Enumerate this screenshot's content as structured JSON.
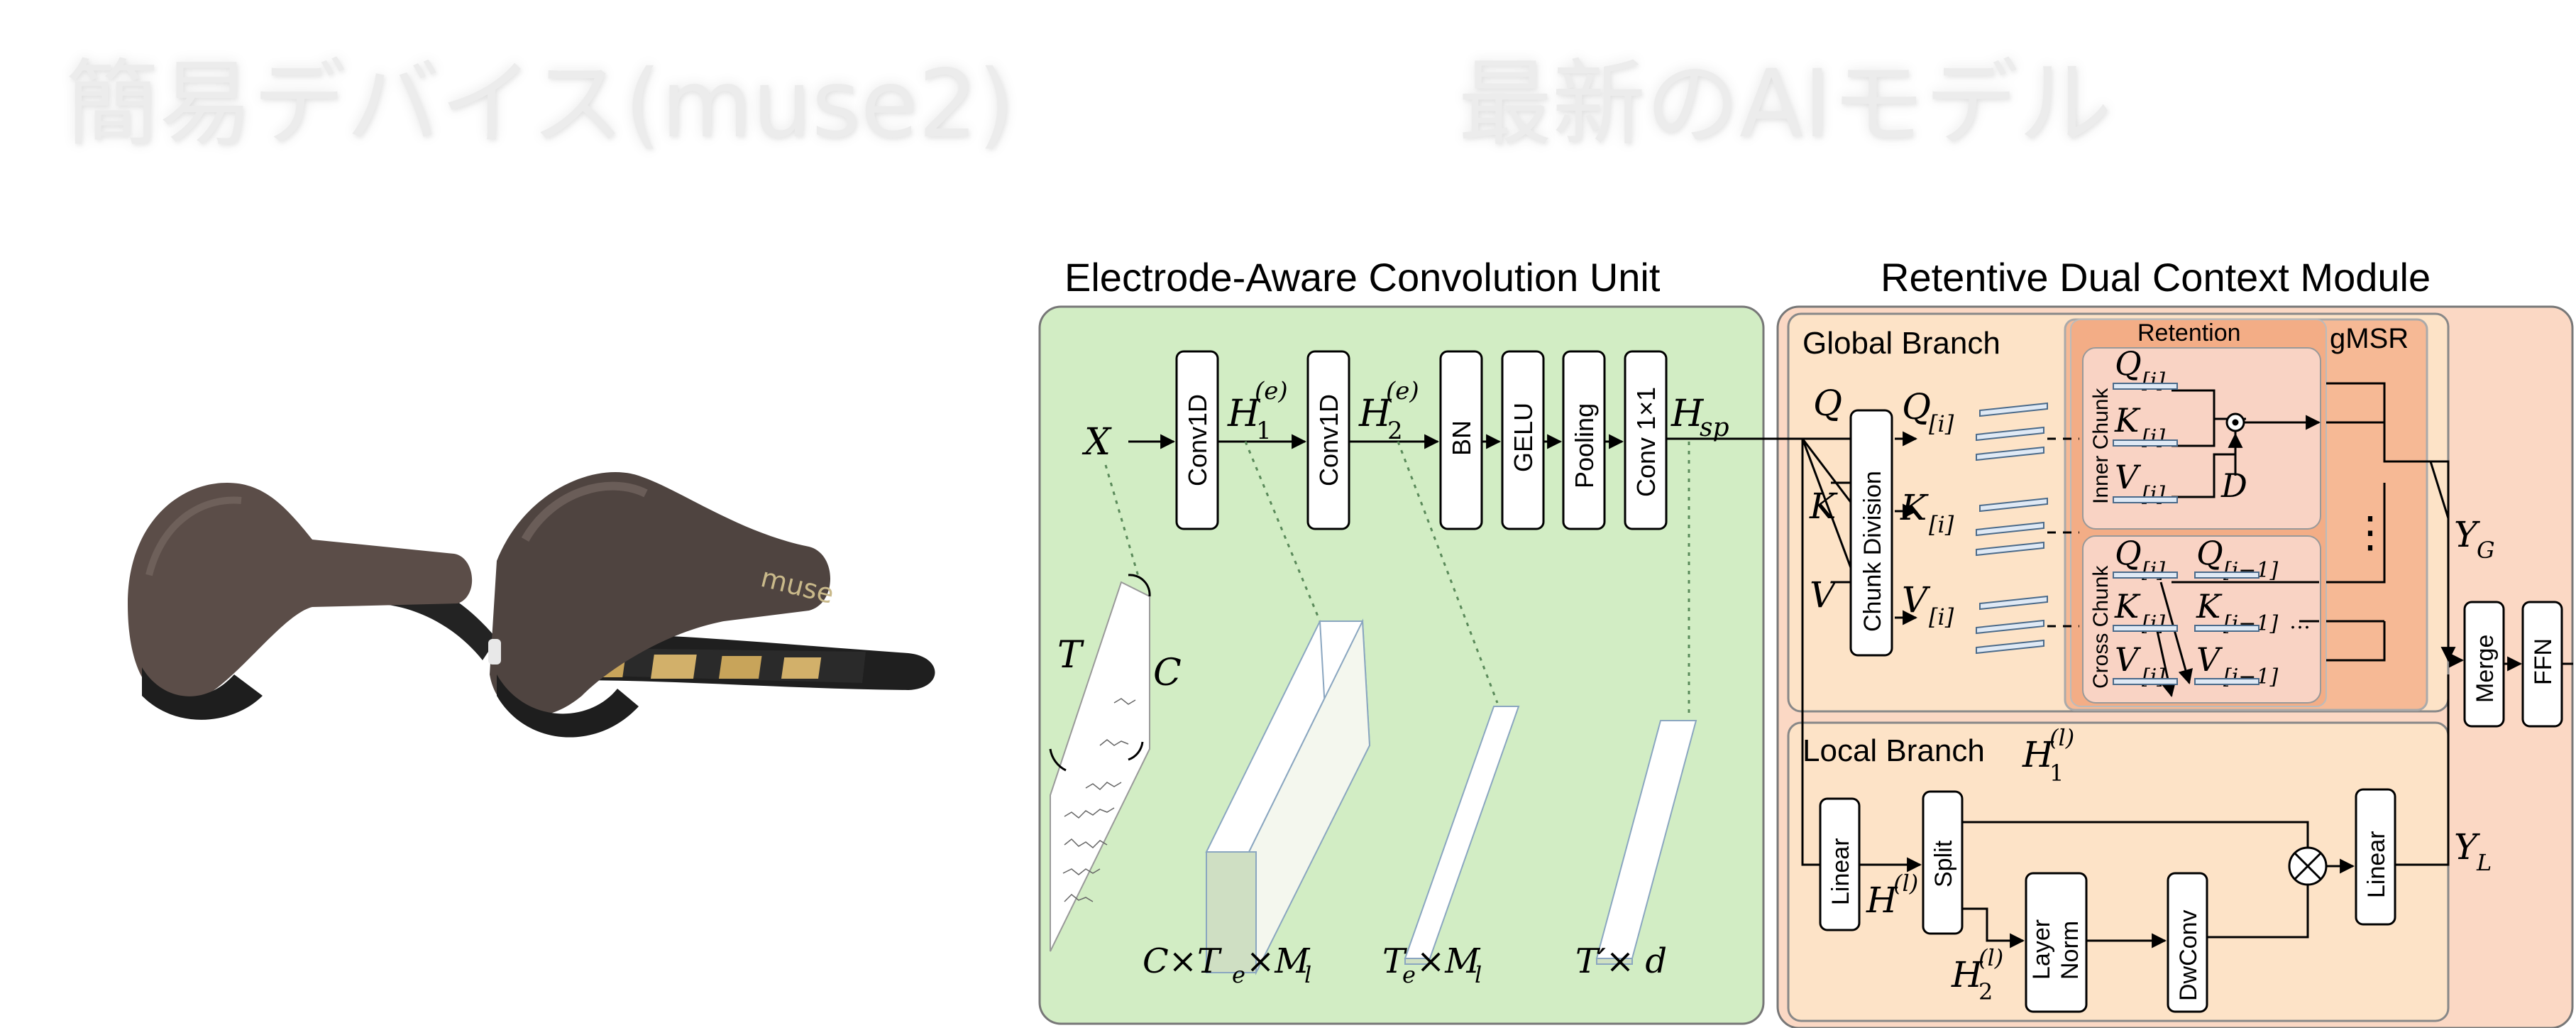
{
  "headings": {
    "left": "簡易デバイス(muse2)",
    "right": "最新のAIモデル"
  },
  "headset": {
    "brand_text": "muse",
    "shell_color": "#5b4d48",
    "band_color": "#222222",
    "sensor_color": "#c8a45a"
  },
  "diagram": {
    "colors": {
      "green": "#d2edc4",
      "orange": "#fde3c7",
      "salmon": "#fbd8c4",
      "retention": "#f6b995",
      "chunk": "#f9d3c4"
    },
    "sections": {
      "eacu_title": "Electrode-Aware Convolution Unit",
      "rdcm_title": "Retentive Dual Context Module",
      "global_branch": "Global Branch",
      "local_branch": "Local Branch",
      "retention": "Retention",
      "gmsr": "gMSR",
      "inner_chunk": "Inner Chunk",
      "cross_chunk": "Cross Chunk"
    },
    "blocks": {
      "conv1d_a": "Conv1D",
      "conv1d_b": "Conv1D",
      "bn": "BN",
      "gelu": "GELU",
      "pooling": "Pooling",
      "conv1x1": "Conv 1×1",
      "chunk_division": "Chunk Division",
      "linear_in": "Linear",
      "split": "Split",
      "layer_norm_1": "Layer",
      "layer_norm_2": "Norm",
      "dwconv": "DwConv",
      "linear_out": "Linear",
      "merge": "Merge",
      "ffn": "FFN"
    },
    "math": {
      "x": "X",
      "h1e": "H",
      "h1e_sub": "1",
      "h1e_sup": "(e)",
      "h2e": "H",
      "h2e_sub": "2",
      "h2e_sup": "(e)",
      "hsp": "H",
      "hsp_sub": "sp",
      "q": "Q",
      "k": "K",
      "v": "V",
      "qi": "Q",
      "ki": "K",
      "vi": "V",
      "idx_i": "[i]",
      "idx_im1": "[i−1]",
      "d": "D",
      "ellipsis": "…",
      "dots": "⋮",
      "yg": "Y",
      "yg_sub": "G",
      "yl": "Y",
      "yl_sub": "L",
      "hl": "H",
      "hl_sup": "(l)",
      "hl1_sub": "1",
      "hl2_sub": "2",
      "t": "T",
      "c": "C",
      "shape1": "C×T",
      "shape1_e": "e",
      "shape1_m": "×M",
      "shape1_l": "l",
      "shape2": "T",
      "shape2_e": "e",
      "shape2_m": "×M",
      "shape2_l": "l",
      "shape3": "T′× d"
    }
  }
}
